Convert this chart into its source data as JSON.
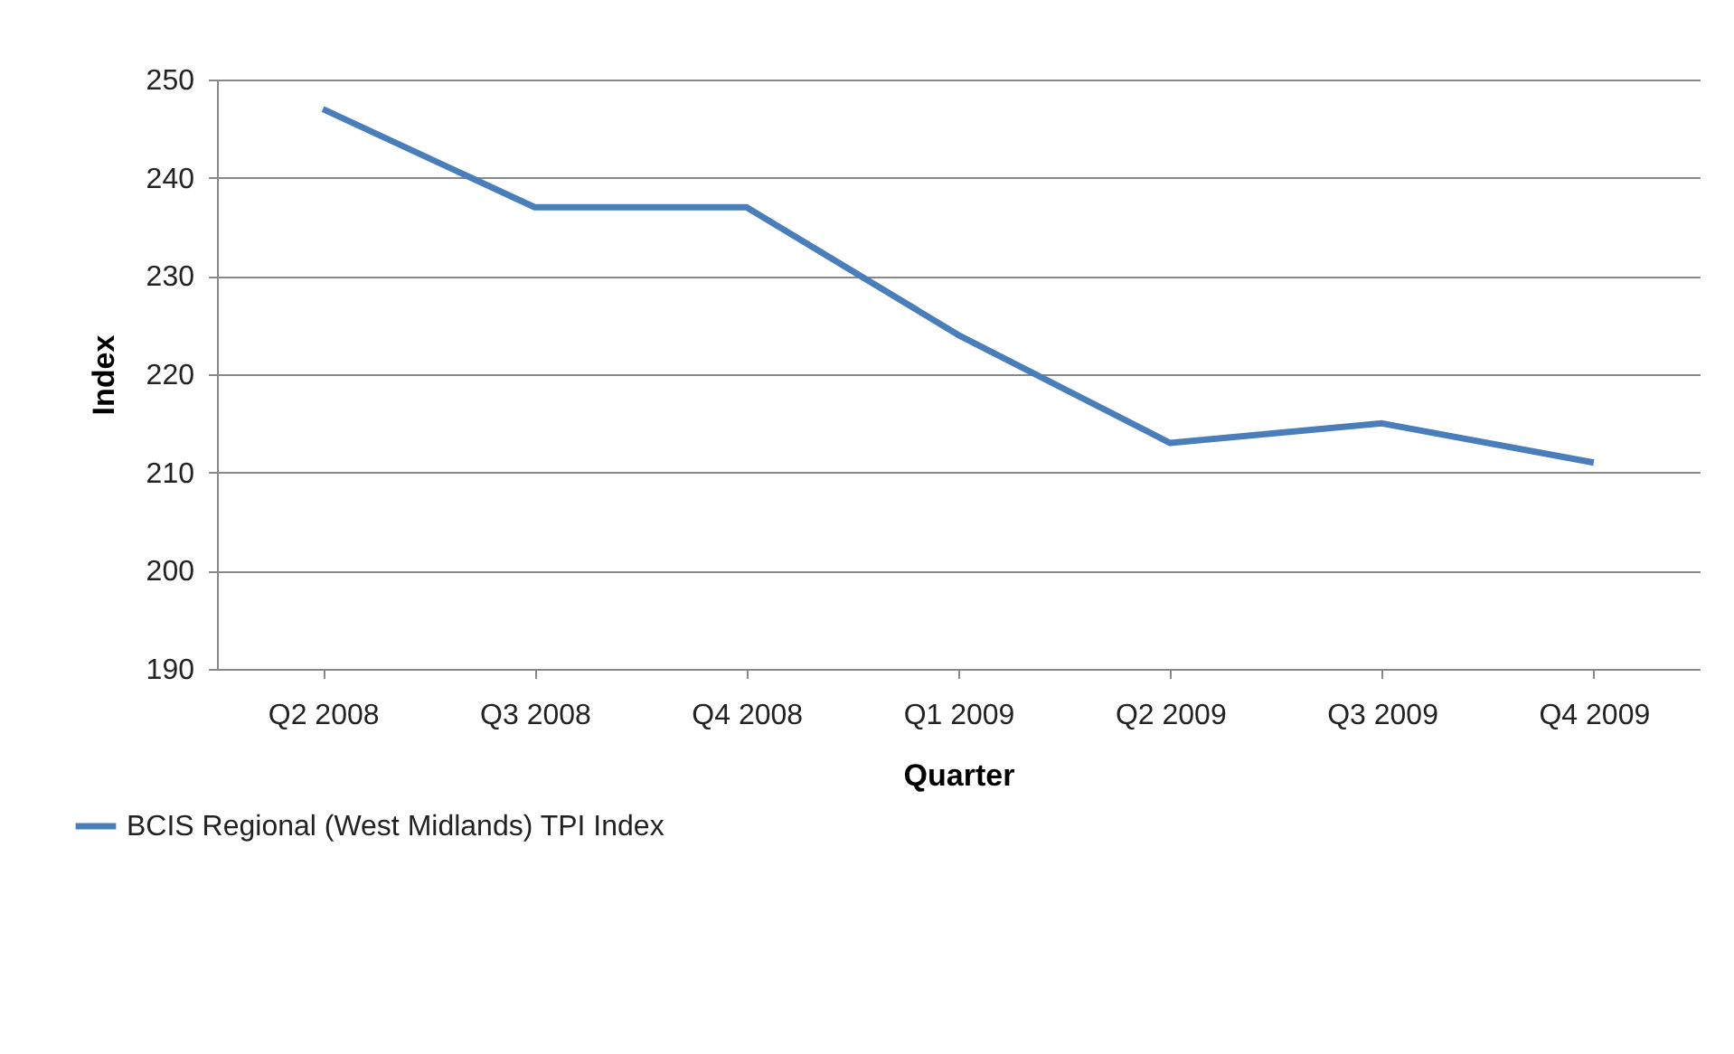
{
  "chart_data": {
    "type": "line",
    "xlabel": "Quarter",
    "ylabel": "Index",
    "categories": [
      "Q2 2008",
      "Q3 2008",
      "Q4 2008",
      "Q1 2009",
      "Q2 2009",
      "Q3 2009",
      "Q4 2009"
    ],
    "series": [
      {
        "name": "BCIS Regional (West Midlands) TPI Index",
        "color": "#4a7ebb",
        "values": [
          247,
          237,
          237,
          224,
          213,
          215,
          211
        ]
      }
    ],
    "ylim": [
      190,
      250
    ],
    "yticks": [
      190,
      200,
      210,
      220,
      230,
      240,
      250
    ],
    "grid": "y",
    "legend": "bottom left",
    "marker": "none",
    "line_style": "solid"
  }
}
